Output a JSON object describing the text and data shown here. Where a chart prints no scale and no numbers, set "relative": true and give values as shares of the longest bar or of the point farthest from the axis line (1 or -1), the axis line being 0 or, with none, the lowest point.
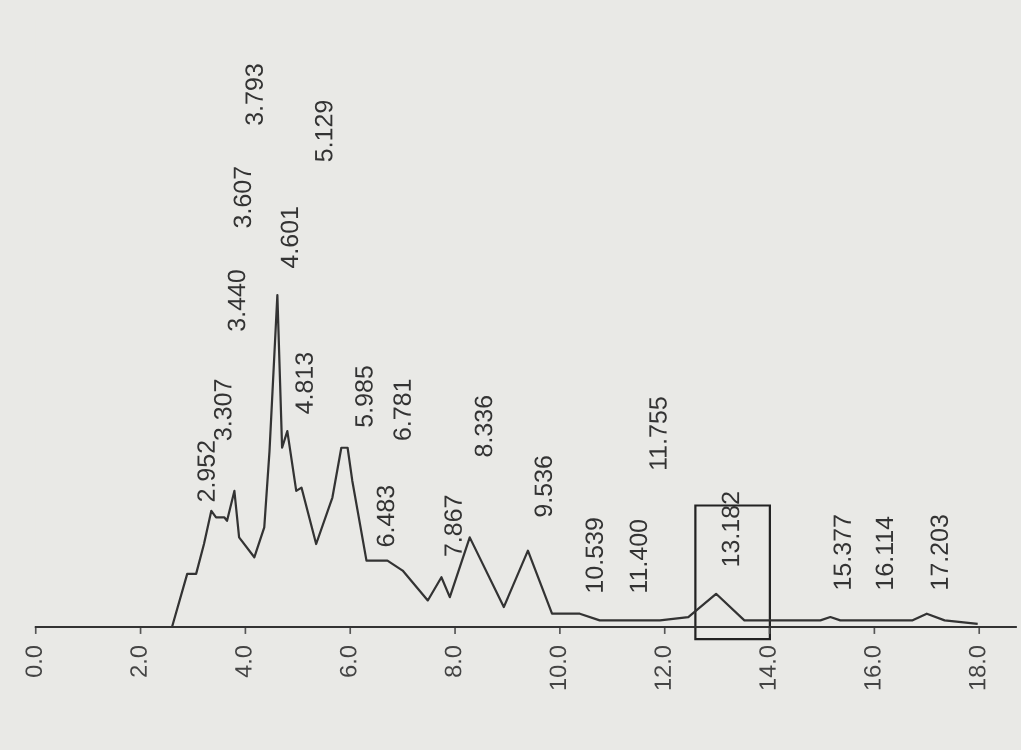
{
  "chart_data": {
    "type": "line",
    "relative": true,
    "tick_labels": "x",
    "x": [
      2.6,
      2.89,
      3.06,
      3.21,
      3.35,
      3.44,
      3.6,
      3.65,
      3.79,
      3.88,
      4.17,
      4.36,
      4.46,
      4.61,
      4.7,
      4.8,
      4.97,
      5.07,
      5.35,
      5.66,
      5.83,
      5.95,
      6.04,
      6.31,
      6.71,
      7.0,
      7.48,
      7.74,
      7.9,
      8.28,
      8.93,
      9.39,
      9.85,
      10.38,
      10.76,
      11.53,
      11.91,
      12.45,
      12.98,
      13.52,
      14.97,
      15.16,
      15.35,
      16.73,
      17.0,
      17.34,
      17.95
    ],
    "series": [
      {
        "color": "#333333",
        "values": [
          0,
          0.16,
          0.16,
          0.25,
          0.35,
          0.33,
          0.33,
          0.32,
          0.41,
          0.27,
          0.21,
          0.3,
          0.53,
          1.0,
          0.54,
          0.59,
          0.41,
          0.42,
          0.25,
          0.39,
          0.54,
          0.54,
          0.44,
          0.2,
          0.2,
          0.17,
          0.08,
          0.15,
          0.09,
          0.27,
          0.06,
          0.23,
          0.04,
          0.04,
          0.02,
          0.02,
          0.02,
          0.03,
          0.1,
          0.02,
          0.02,
          0.03,
          0.02,
          0.02,
          0.04,
          0.02,
          0.01
        ]
      }
    ],
    "xlim": [
      0,
      18.7
    ],
    "xticks": [
      {
        "value": 0,
        "label": "0.0"
      },
      {
        "value": 2,
        "label": "2.0"
      },
      {
        "value": 4,
        "label": "4.0"
      },
      {
        "value": 6,
        "label": "6.0"
      },
      {
        "value": 8,
        "label": "8.0"
      },
      {
        "value": 10,
        "label": "10.0"
      },
      {
        "value": 12,
        "label": "12.0"
      },
      {
        "value": 14,
        "label": "14.0"
      },
      {
        "value": 16,
        "label": "16.0"
      },
      {
        "value": 18,
        "label": "18.0"
      }
    ],
    "annotations": [
      "2.952",
      "3.307",
      "3.440",
      "3.607",
      "3.793",
      "4.601",
      "5.129",
      "4.813",
      "5.985",
      "6.781",
      "6.483",
      "7.867",
      "8.336",
      "9.536",
      "10.539",
      "11.400",
      "11.755",
      "13.182",
      "15.377",
      "16.114",
      "17.203"
    ]
  }
}
